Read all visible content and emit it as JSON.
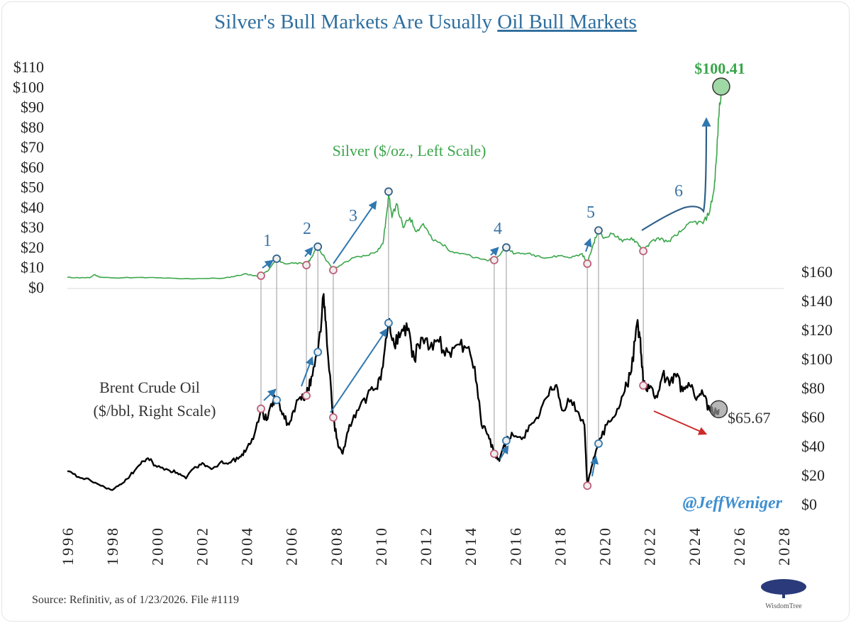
{
  "chart_data": {
    "type": "line",
    "title": "Silver's Bull Markets Are Usually",
    "title_underlined": "Oil Bull Markets",
    "x_ticks": [
      "1996",
      "1998",
      "2000",
      "2002",
      "2004",
      "2006",
      "2008",
      "2010",
      "2012",
      "2014",
      "2016",
      "2018",
      "2020",
      "2022",
      "2024",
      "2026",
      "2028"
    ],
    "xlim": [
      1996,
      2028
    ],
    "left_axis": {
      "ticks": [
        "$0",
        "$10",
        "$20",
        "$30",
        "$40",
        "$50",
        "$60",
        "$70",
        "$80",
        "$90",
        "$100",
        "$110"
      ],
      "ylim": [
        0,
        110
      ]
    },
    "right_axis": {
      "ticks": [
        "$0",
        "$20",
        "$40",
        "$60",
        "$80",
        "$100",
        "$120",
        "$140",
        "$160"
      ],
      "ylim": [
        0,
        160
      ]
    },
    "grid": false,
    "series": [
      {
        "name": "Silver ($/oz., Left Scale)",
        "axis": "left",
        "color": "#3aa64a",
        "points": [
          [
            1996,
            5.2
          ],
          [
            1996.5,
            5
          ],
          [
            1997,
            5
          ],
          [
            1997.2,
            6.5
          ],
          [
            1997.5,
            5.2
          ],
          [
            1998,
            5
          ],
          [
            1999,
            5.1
          ],
          [
            2000,
            5
          ],
          [
            2001,
            4.5
          ],
          [
            2002,
            4.6
          ],
          [
            2003,
            4.8
          ],
          [
            2003.5,
            5.8
          ],
          [
            2004,
            7
          ],
          [
            2004.3,
            6
          ],
          [
            2004.65,
            6
          ],
          [
            2005,
            9
          ],
          [
            2005.35,
            14.5
          ],
          [
            2005.7,
            12
          ],
          [
            2006.2,
            12.5
          ],
          [
            2006.68,
            11.3
          ],
          [
            2006.9,
            15
          ],
          [
            2007.19,
            20.5
          ],
          [
            2007.5,
            15
          ],
          [
            2007.88,
            8.8
          ],
          [
            2008.3,
            12
          ],
          [
            2008.8,
            15
          ],
          [
            2009.3,
            16
          ],
          [
            2009.8,
            18
          ],
          [
            2010.1,
            22
          ],
          [
            2010.3,
            40
          ],
          [
            2010.35,
            48
          ],
          [
            2010.5,
            35
          ],
          [
            2010.7,
            42
          ],
          [
            2011,
            30
          ],
          [
            2011.3,
            35
          ],
          [
            2011.6,
            28
          ],
          [
            2011.9,
            32
          ],
          [
            2012.3,
            24
          ],
          [
            2012.7,
            22
          ],
          [
            2013.2,
            18
          ],
          [
            2013.7,
            17
          ],
          [
            2014.2,
            15
          ],
          [
            2014.7,
            14
          ],
          [
            2015.07,
            13.8
          ],
          [
            2015.61,
            20.1
          ],
          [
            2016,
            17
          ],
          [
            2016.5,
            17
          ],
          [
            2017,
            16
          ],
          [
            2017.5,
            15
          ],
          [
            2018,
            16
          ],
          [
            2018.5,
            15
          ],
          [
            2019,
            17
          ],
          [
            2019.23,
            12
          ],
          [
            2019.5,
            22
          ],
          [
            2019.73,
            28.6
          ],
          [
            2020,
            25
          ],
          [
            2020.4,
            27
          ],
          [
            2020.8,
            23
          ],
          [
            2021.2,
            25
          ],
          [
            2021.5,
            22
          ],
          [
            2021.73,
            18.3
          ],
          [
            2022,
            22
          ],
          [
            2022.4,
            25
          ],
          [
            2022.8,
            23
          ],
          [
            2023.2,
            26
          ],
          [
            2023.6,
            30
          ],
          [
            2024,
            33
          ],
          [
            2024.4,
            32
          ],
          [
            2024.7,
            38
          ],
          [
            2024.9,
            50
          ],
          [
            2025.0,
            65
          ],
          [
            2025.1,
            85
          ],
          [
            2025.21,
            100.41
          ]
        ]
      },
      {
        "name": "Brent Crude Oil ($/bbl, Right Scale)",
        "axis": "right",
        "color": "#000000",
        "points": [
          [
            1996,
            23
          ],
          [
            1996.5,
            19
          ],
          [
            1997,
            17
          ],
          [
            1997.5,
            13
          ],
          [
            1998,
            10
          ],
          [
            1998.4,
            14
          ],
          [
            1998.8,
            20
          ],
          [
            1999.2,
            27
          ],
          [
            1999.6,
            32
          ],
          [
            2000,
            26
          ],
          [
            2000.5,
            24
          ],
          [
            2000.9,
            22
          ],
          [
            2001.3,
            18
          ],
          [
            2001.7,
            26
          ],
          [
            2002.1,
            28
          ],
          [
            2002.5,
            25
          ],
          [
            2002.9,
            30
          ],
          [
            2003.3,
            29
          ],
          [
            2003.7,
            33
          ],
          [
            2004,
            38
          ],
          [
            2004.3,
            45
          ],
          [
            2004.65,
            66
          ],
          [
            2004.9,
            58
          ],
          [
            2005.2,
            72
          ],
          [
            2005.35,
            72
          ],
          [
            2005.6,
            62
          ],
          [
            2005.9,
            55
          ],
          [
            2006.2,
            68
          ],
          [
            2006.5,
            76
          ],
          [
            2006.68,
            75
          ],
          [
            2006.9,
            88
          ],
          [
            2007.19,
            105
          ],
          [
            2007.45,
            145
          ],
          [
            2007.6,
            110
          ],
          [
            2007.88,
            60
          ],
          [
            2008.1,
            40
          ],
          [
            2008.3,
            35
          ],
          [
            2008.6,
            55
          ],
          [
            2009,
            65
          ],
          [
            2009.4,
            75
          ],
          [
            2009.8,
            80
          ],
          [
            2010.1,
            95
          ],
          [
            2010.35,
            125
          ],
          [
            2010.6,
            110
          ],
          [
            2010.9,
            118
          ],
          [
            2011.2,
            120
          ],
          [
            2011.5,
            100
          ],
          [
            2011.8,
            115
          ],
          [
            2012.2,
            108
          ],
          [
            2012.6,
            112
          ],
          [
            2013,
            105
          ],
          [
            2013.4,
            110
          ],
          [
            2013.8,
            108
          ],
          [
            2014.2,
            95
          ],
          [
            2014.5,
            55
          ],
          [
            2014.8,
            48
          ],
          [
            2015.07,
            35
          ],
          [
            2015.3,
            30
          ],
          [
            2015.61,
            44
          ],
          [
            2015.9,
            48
          ],
          [
            2016.3,
            45
          ],
          [
            2016.7,
            55
          ],
          [
            2017.1,
            62
          ],
          [
            2017.5,
            75
          ],
          [
            2017.8,
            82
          ],
          [
            2018.1,
            65
          ],
          [
            2018.5,
            72
          ],
          [
            2018.9,
            60
          ],
          [
            2019.1,
            55
          ],
          [
            2019.23,
            13
          ],
          [
            2019.4,
            25
          ],
          [
            2019.73,
            42
          ],
          [
            2020.1,
            55
          ],
          [
            2020.5,
            62
          ],
          [
            2020.9,
            78
          ],
          [
            2021.2,
            92
          ],
          [
            2021.45,
            125
          ],
          [
            2021.6,
            115
          ],
          [
            2021.73,
            82
          ],
          [
            2022,
            80
          ],
          [
            2022.3,
            75
          ],
          [
            2022.6,
            90
          ],
          [
            2022.9,
            82
          ],
          [
            2023.2,
            88
          ],
          [
            2023.5,
            78
          ],
          [
            2023.8,
            82
          ],
          [
            2024.1,
            72
          ],
          [
            2024.4,
            76
          ],
          [
            2024.7,
            65
          ],
          [
            2025,
            63
          ],
          [
            2025.1,
            65.67
          ]
        ]
      }
    ],
    "series_labels": {
      "silver": "Silver ($/oz., Left Scale)",
      "oil_line1": "Brent Crude Oil",
      "oil_line2": "($/bbl, Right Scale)"
    },
    "silver_turns": [
      [
        2004.65,
        6
      ],
      [
        2005.35,
        14.5
      ],
      [
        2006.68,
        11.3
      ],
      [
        2007.19,
        20.5
      ],
      [
        2007.88,
        8.8
      ],
      [
        2010.35,
        48
      ],
      [
        2015.07,
        13.8
      ],
      [
        2015.61,
        20.1
      ],
      [
        2019.23,
        12
      ],
      [
        2019.73,
        28.6
      ],
      [
        2021.73,
        18.3
      ]
    ],
    "oil_turns": [
      [
        2004.65,
        66
      ],
      [
        2005.35,
        72
      ],
      [
        2006.68,
        75
      ],
      [
        2007.19,
        105
      ],
      [
        2007.88,
        60
      ],
      [
        2010.35,
        125
      ],
      [
        2015.07,
        35
      ],
      [
        2015.61,
        44
      ],
      [
        2019.23,
        13
      ],
      [
        2019.73,
        42
      ],
      [
        2021.73,
        82
      ]
    ],
    "annotations": {
      "bull_numbers": [
        "1",
        "2",
        "3",
        "4",
        "5",
        "6"
      ],
      "silver_last": "$100.41",
      "oil_last": "$65.67",
      "handle": "@JeffWeniger"
    },
    "colors": {
      "title": "#2f6f9f",
      "silver": "#3aa64a",
      "oil": "#000000",
      "arrow": "#2f78b0",
      "down_arrow": "#cc2a2a"
    }
  },
  "footer": {
    "source": "Source: Refinitiv, as of 1/23/2026. File #1119",
    "logo_text": "WisdomTree"
  }
}
